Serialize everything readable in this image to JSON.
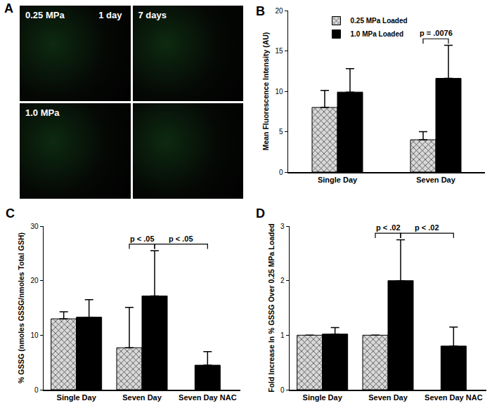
{
  "image_panel": {
    "title": "A",
    "tiles": [
      {
        "label": "0.25 MPa",
        "corner_label": "1 day"
      },
      {
        "label": "7 days"
      },
      {
        "label": "1.0 MPa"
      },
      {}
    ]
  },
  "chart_data": [
    {
      "type": "bar",
      "title": "B",
      "y_label": "Mean Fluorescence Intensity (AU)",
      "categories": [
        "Single Day",
        "Seven Day"
      ],
      "series": [
        {
          "name": "0.25 MPa Loaded",
          "color": "#d9d9d9",
          "marker": "crosshatch",
          "values": [
            8.0,
            4.0
          ],
          "errors": [
            2.1,
            1.0
          ]
        },
        {
          "name": "1.0 MPa Loaded",
          "color": "#000000",
          "values": [
            9.9,
            11.6
          ],
          "errors": [
            2.9,
            4.1
          ]
        }
      ],
      "ylim": [
        0,
        20
      ],
      "yticks": [
        0,
        5,
        10,
        15,
        20
      ],
      "grid": false,
      "legend": "top",
      "annotations": [
        {
          "text": "p = .0076",
          "between": [
            {
              "category": "Seven Day",
              "series": "0.25 MPa Loaded"
            },
            {
              "category": "Seven Day",
              "series": "1.0 MPa Loaded"
            }
          ]
        }
      ]
    },
    {
      "type": "bar",
      "title": "C",
      "y_label": "% GSSG (nmoles GSSG/nmoles Total GSH)",
      "categories": [
        "Single Day",
        "Seven Day",
        "Seven Day NAC"
      ],
      "series": [
        {
          "name": "0.25 MPa Loaded",
          "color": "#d9d9d9",
          "marker": "crosshatch",
          "values": [
            13.0,
            7.7,
            null
          ],
          "errors": [
            1.3,
            7.4,
            null
          ]
        },
        {
          "name": "1.0 MPa Loaded",
          "color": "#000000",
          "values": [
            13.3,
            17.2,
            4.5
          ],
          "errors": [
            3.2,
            8.3,
            2.5
          ]
        }
      ],
      "ylim": [
        0,
        30
      ],
      "yticks": [
        0,
        10,
        20,
        30
      ],
      "grid": false,
      "annotations": [
        {
          "text": "p < .05",
          "between": [
            {
              "category": "Seven Day",
              "series": "0.25 MPa Loaded"
            },
            {
              "category": "Seven Day",
              "series": "1.0 MPa Loaded"
            }
          ]
        },
        {
          "text": "p < .05",
          "between": [
            {
              "category": "Seven Day",
              "series": "1.0 MPa Loaded"
            },
            {
              "category": "Seven Day NAC",
              "series": "1.0 MPa Loaded"
            }
          ]
        }
      ]
    },
    {
      "type": "bar",
      "title": "D",
      "y_label": "Fold Increase In % GSSG Over 0.25 MPa Loaded",
      "categories": [
        "Single Day",
        "Seven Day",
        "Seven Day NAC"
      ],
      "series": [
        {
          "name": "0.25 MPa Loaded",
          "color": "#d9d9d9",
          "marker": "crosshatch",
          "values": [
            1.0,
            1.0,
            null
          ],
          "errors": [
            0.0,
            0.0,
            null
          ]
        },
        {
          "name": "1.0 MPa Loaded",
          "color": "#000000",
          "values": [
            1.02,
            2.0,
            0.8
          ],
          "errors": [
            0.12,
            0.75,
            0.35
          ]
        }
      ],
      "ylim": [
        0,
        3
      ],
      "yticks": [
        0,
        1,
        2,
        3
      ],
      "grid": false,
      "annotations": [
        {
          "text": "p < .02",
          "between": [
            {
              "category": "Seven Day",
              "series": "0.25 MPa Loaded"
            },
            {
              "category": "Seven Day",
              "series": "1.0 MPa Loaded"
            }
          ]
        },
        {
          "text": "p < .02",
          "between": [
            {
              "category": "Seven Day",
              "series": "1.0 MPa Loaded"
            },
            {
              "category": "Seven Day NAC",
              "series": "1.0 MPa Loaded"
            }
          ]
        }
      ]
    }
  ]
}
